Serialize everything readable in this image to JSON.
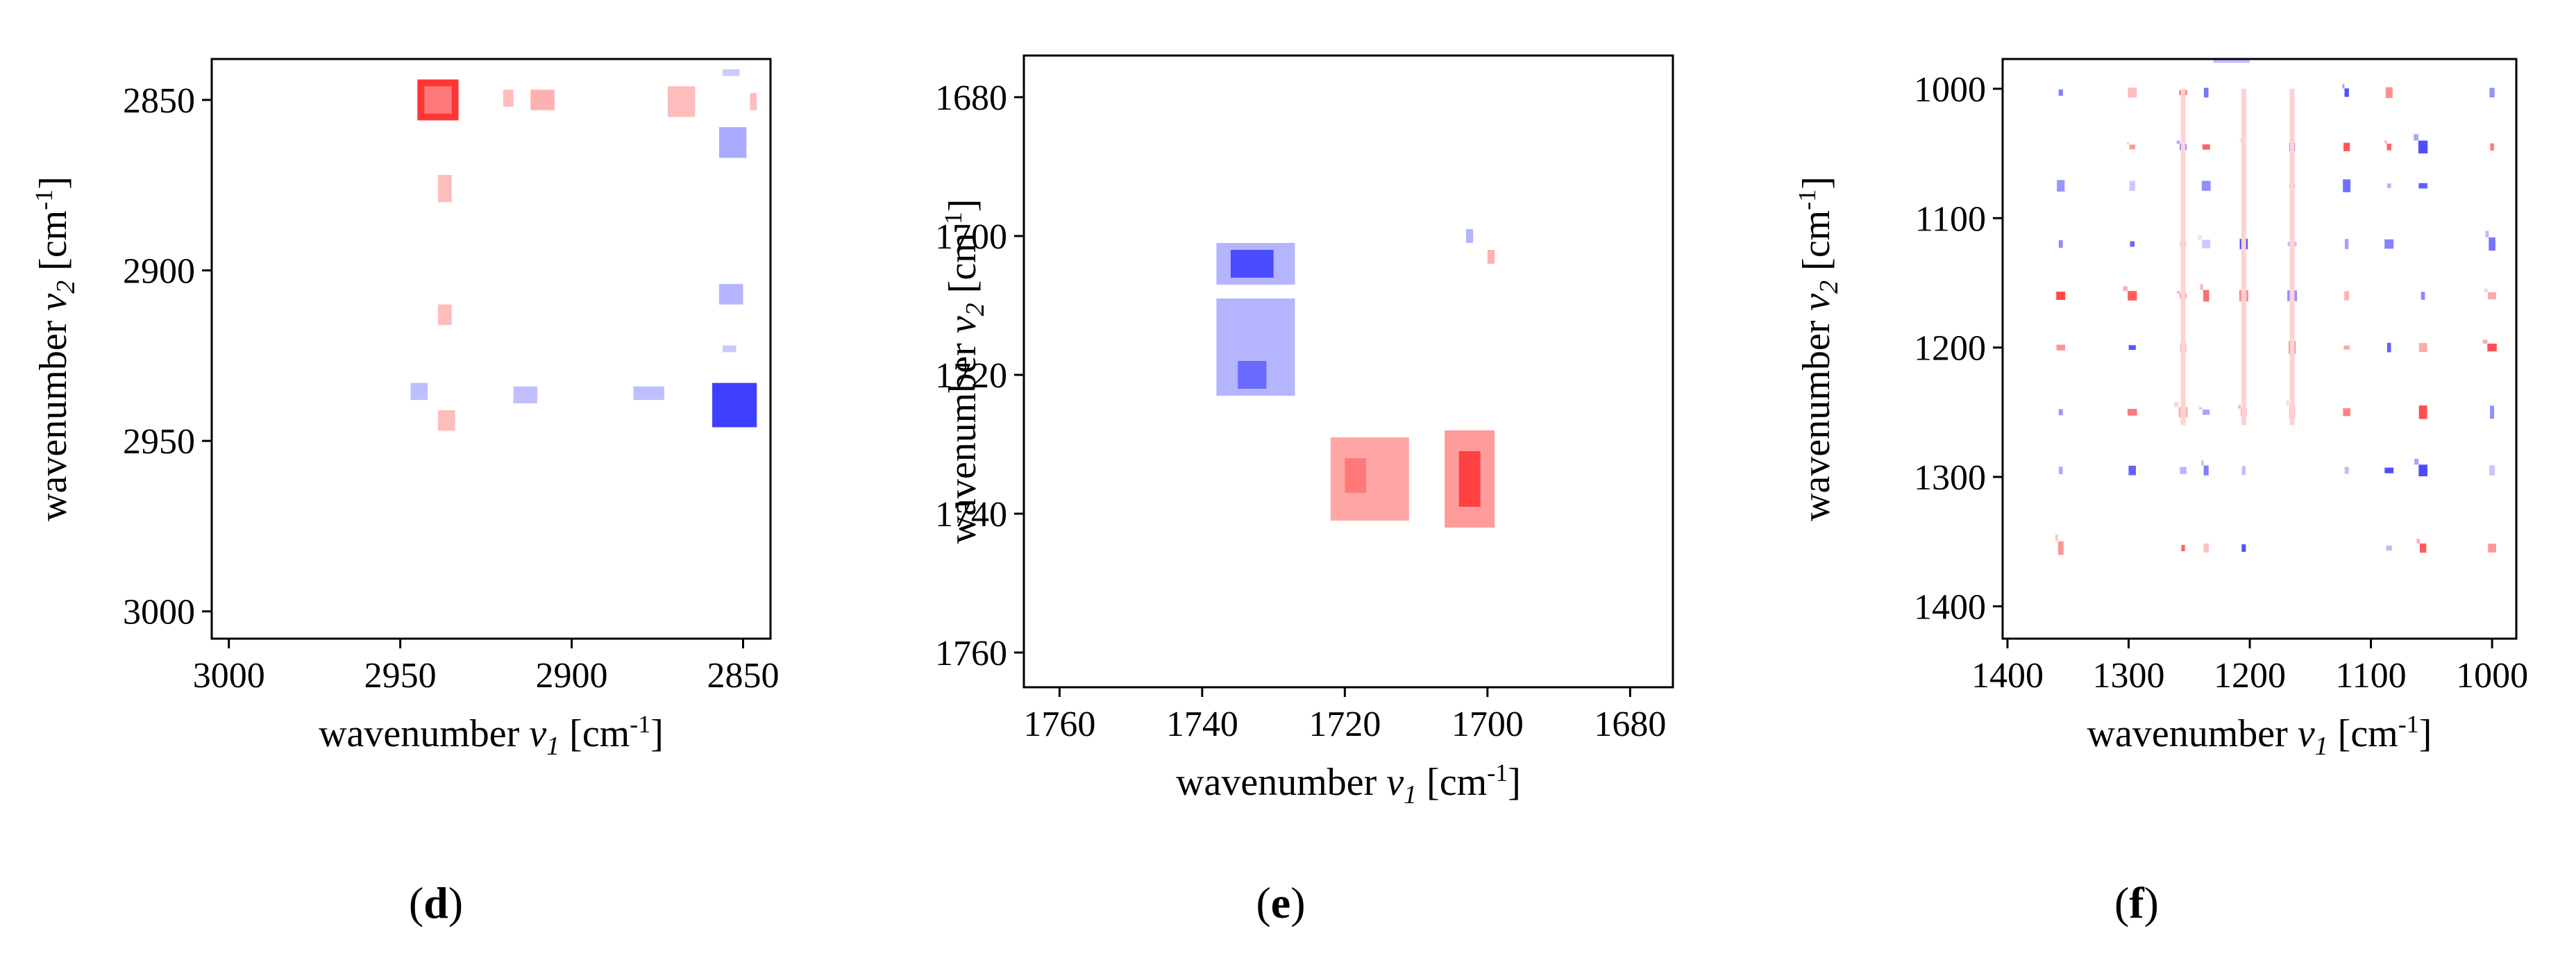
{
  "chart_data": [
    {
      "type": "heatmap",
      "panel_label": "d",
      "xlabel": {
        "text": "wavenumber",
        "symbol": "v",
        "sub": "1",
        "unit_open": "[cm",
        "unit_exp": "-1",
        "unit_close": "]"
      },
      "ylabel": {
        "text": "wavenumber",
        "symbol": "v",
        "sub": "2",
        "unit_open": "[cm",
        "unit_exp": "-1",
        "unit_close": "]"
      },
      "xlim": [
        3005,
        2842
      ],
      "ylim": [
        2838,
        3008
      ],
      "xticks": [
        3000,
        2950,
        2900,
        2850
      ],
      "yticks": [
        2850,
        2900,
        2950,
        3000
      ],
      "colors": {
        "positive": "#ff2020",
        "negative": "#2a2aff"
      },
      "cells": [
        {
          "x1": 2945,
          "x2": 2933,
          "y1": 2844,
          "y2": 2856,
          "v": 0.9
        },
        {
          "x1": 2943,
          "x2": 2935,
          "y1": 2846,
          "y2": 2854,
          "v": 0.6
        },
        {
          "x1": 2920,
          "x2": 2917,
          "y1": 2847,
          "y2": 2852,
          "v": 0.3
        },
        {
          "x1": 2912,
          "x2": 2905,
          "y1": 2847,
          "y2": 2853,
          "v": 0.35
        },
        {
          "x1": 2872,
          "x2": 2864,
          "y1": 2846,
          "y2": 2855,
          "v": 0.3
        },
        {
          "x1": 2848,
          "x2": 2846,
          "y1": 2848,
          "y2": 2853,
          "v": 0.3
        },
        {
          "x1": 2856,
          "x2": 2851,
          "y1": 2841,
          "y2": 2843,
          "v": -0.25
        },
        {
          "x1": 2857,
          "x2": 2849,
          "y1": 2858,
          "y2": 2867,
          "v": -0.4
        },
        {
          "x1": 2939,
          "x2": 2935,
          "y1": 2872,
          "y2": 2880,
          "v": 0.3
        },
        {
          "x1": 2939,
          "x2": 2935,
          "y1": 2910,
          "y2": 2916,
          "v": 0.3
        },
        {
          "x1": 2857,
          "x2": 2850,
          "y1": 2904,
          "y2": 2910,
          "v": -0.35
        },
        {
          "x1": 2856,
          "x2": 2852,
          "y1": 2922,
          "y2": 2924,
          "v": -0.25
        },
        {
          "x1": 2947,
          "x2": 2942,
          "y1": 2933,
          "y2": 2938,
          "v": -0.3
        },
        {
          "x1": 2917,
          "x2": 2910,
          "y1": 2934,
          "y2": 2939,
          "v": -0.3
        },
        {
          "x1": 2882,
          "x2": 2873,
          "y1": 2934,
          "y2": 2938,
          "v": -0.3
        },
        {
          "x1": 2859,
          "x2": 2846,
          "y1": 2933,
          "y2": 2946,
          "v": -0.9
        },
        {
          "x1": 2939,
          "x2": 2934,
          "y1": 2941,
          "y2": 2947,
          "v": 0.3
        }
      ]
    },
    {
      "type": "heatmap",
      "panel_label": "e",
      "xlabel": {
        "text": "wavenumber",
        "symbol": "v",
        "sub": "1",
        "unit_open": "[cm",
        "unit_exp": "-1",
        "unit_close": "]"
      },
      "ylabel": {
        "text": "wavenumber",
        "symbol": "v",
        "sub": "2",
        "unit_open": "[cm",
        "unit_exp": "-1",
        "unit_close": "]"
      },
      "xlim": [
        1765,
        1674
      ],
      "ylim": [
        1674,
        1765
      ],
      "xticks": [
        1760,
        1740,
        1720,
        1700,
        1680
      ],
      "yticks": [
        1680,
        1700,
        1720,
        1740,
        1760
      ],
      "colors": {
        "positive": "#ff2020",
        "negative": "#2a2aff"
      },
      "cells": [
        {
          "x1": 1738,
          "x2": 1727,
          "y1": 1701,
          "y2": 1707,
          "v": -0.35
        },
        {
          "x1": 1736,
          "x2": 1730,
          "y1": 1702,
          "y2": 1706,
          "v": -0.85
        },
        {
          "x1": 1738,
          "x2": 1727,
          "y1": 1709,
          "y2": 1723,
          "v": -0.35
        },
        {
          "x1": 1735,
          "x2": 1731,
          "y1": 1718,
          "y2": 1722,
          "v": -0.7
        },
        {
          "x1": 1703,
          "x2": 1702,
          "y1": 1699,
          "y2": 1701,
          "v": -0.35
        },
        {
          "x1": 1700,
          "x2": 1699,
          "y1": 1702,
          "y2": 1704,
          "v": 0.35
        },
        {
          "x1": 1722,
          "x2": 1711,
          "y1": 1729,
          "y2": 1741,
          "v": 0.4
        },
        {
          "x1": 1720,
          "x2": 1717,
          "y1": 1732,
          "y2": 1737,
          "v": 0.6
        },
        {
          "x1": 1706,
          "x2": 1699,
          "y1": 1728,
          "y2": 1742,
          "v": 0.45
        },
        {
          "x1": 1704,
          "x2": 1701,
          "y1": 1731,
          "y2": 1739,
          "v": 0.85
        }
      ]
    },
    {
      "type": "heatmap",
      "panel_label": "f",
      "xlabel": {
        "text": "wavenumber",
        "symbol": "v",
        "sub": "1",
        "unit_open": "[cm",
        "unit_exp": "-1",
        "unit_close": "]"
      },
      "ylabel": {
        "text": "wavenumber",
        "symbol": "v",
        "sub": "2",
        "unit_open": "[cm",
        "unit_exp": "-1",
        "unit_close": "]"
      },
      "xlim": [
        1404,
        980
      ],
      "ylim": [
        977,
        1425
      ],
      "xticks": [
        1400,
        1300,
        1200,
        1100,
        1000
      ],
      "yticks": [
        1000,
        1100,
        1200,
        1300,
        1400
      ],
      "colors": {
        "positive": "#ff2020",
        "negative": "#2a2aff"
      },
      "peaks": [
        1356,
        1297,
        1255,
        1236,
        1205,
        1165,
        1120,
        1085,
        1057,
        1000
      ],
      "row_peaks": [
        1003,
        1045,
        1075,
        1120,
        1160,
        1200,
        1250,
        1295,
        1355
      ]
    }
  ],
  "labels": {
    "d": "d",
    "e": "e",
    "f": "f"
  }
}
